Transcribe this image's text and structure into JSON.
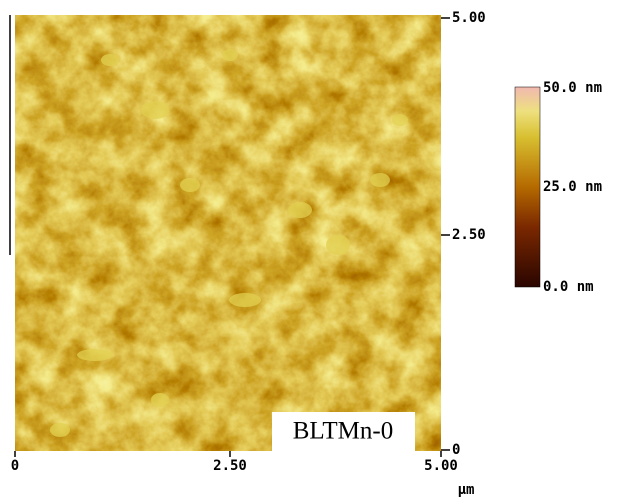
{
  "image": {
    "y_axis": {
      "ticks": [
        "5.00",
        "2.50",
        "0"
      ]
    },
    "x_axis": {
      "ticks": [
        "0",
        "2.50",
        "5.00"
      ],
      "unit": "µm"
    },
    "colorbar": {
      "labels": [
        "50.0 nm",
        "25.0 nm",
        "0.0 nm"
      ]
    },
    "sample_label": "BLTMn-0"
  }
}
